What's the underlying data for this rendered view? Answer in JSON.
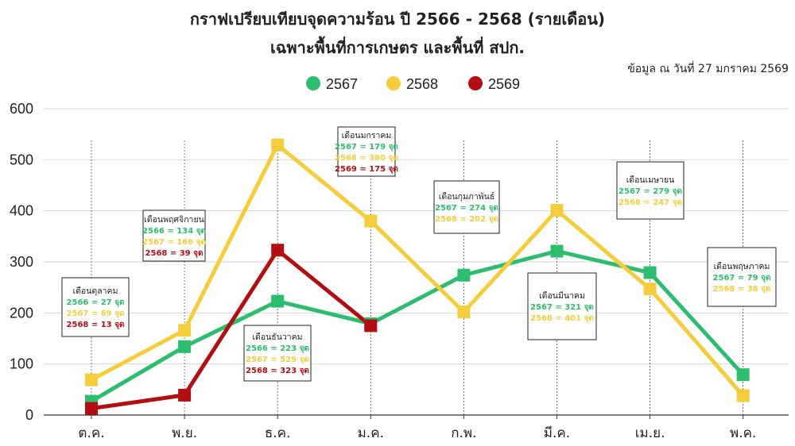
{
  "chart_data": {
    "type": "line",
    "title": "กราฟเปรียบเทียบจุดความร้อน ปี 2566 - 2568 (รายเดือน)",
    "subtitle": "เฉพาะพื้นที่การเกษตร และพื้นที่ สปก.",
    "note": "ข้อมูล ณ วันที่ 27 มกราคม 2569",
    "categories": [
      "ต.ค.",
      "พ.ย.",
      "ธ.ค.",
      "ม.ค.",
      "ก.พ.",
      "มี.ค.",
      "เม.ย.",
      "พ.ค."
    ],
    "ylim": [
      0,
      600
    ],
    "yticks": [
      0,
      100,
      200,
      300,
      400,
      500,
      600
    ],
    "grid": true,
    "legend_position": "top",
    "series": [
      {
        "name": "2567",
        "color": "#2dbd6e",
        "values": [
          27,
          134,
          223,
          179,
          274,
          321,
          279,
          79
        ]
      },
      {
        "name": "2568",
        "color": "#f5cd3c",
        "values": [
          69,
          166,
          529,
          380,
          202,
          401,
          247,
          38
        ]
      },
      {
        "name": "2569",
        "color": "#b30f12",
        "values": [
          13,
          39,
          323,
          175,
          null,
          null,
          null,
          null
        ]
      }
    ],
    "annotations": [
      {
        "title": "เดือนตุลาคม",
        "lines": [
          {
            "text": "2566 = 27 จุด",
            "color": "#2dbd6e"
          },
          {
            "text": "2567 = 69 จุด",
            "color": "#f5cd3c"
          },
          {
            "text": "2568 = 13 จุด",
            "color": "#b30f12"
          }
        ]
      },
      {
        "title": "เดือนพฤศจิกายน",
        "lines": [
          {
            "text": "2566 = 134 จุด",
            "color": "#2dbd6e"
          },
          {
            "text": "2567 = 166 จุด",
            "color": "#f5cd3c"
          },
          {
            "text": "2568 = 39 จุด",
            "color": "#b30f12"
          }
        ]
      },
      {
        "title": "เดือนธันวาคม",
        "lines": [
          {
            "text": "2566 = 223 จุด",
            "color": "#2dbd6e"
          },
          {
            "text": "2567 = 529 จุด",
            "color": "#f5cd3c"
          },
          {
            "text": "2568 = 323 จุด",
            "color": "#b30f12"
          }
        ]
      },
      {
        "title": "เดือนมกราคม",
        "lines": [
          {
            "text": "2567 = 179 จุด",
            "color": "#2dbd6e"
          },
          {
            "text": "2568 = 380 จุด",
            "color": "#f5cd3c"
          },
          {
            "text": "2569 = 175 จุด",
            "color": "#b30f12"
          }
        ]
      },
      {
        "title": "เดือนกุมภาพันธ์",
        "lines": [
          {
            "text": "2567 = 274 จุด",
            "color": "#2dbd6e"
          },
          {
            "text": "2568 = 202 จุด",
            "color": "#f5cd3c"
          }
        ]
      },
      {
        "title": "เดือนมีนาคม",
        "lines": [
          {
            "text": "2567 = 321 จุด",
            "color": "#2dbd6e"
          },
          {
            "text": "2568 = 401 จุด",
            "color": "#f5cd3c"
          }
        ]
      },
      {
        "title": "เดือนเมษายน",
        "lines": [
          {
            "text": "2567 = 279 จุด",
            "color": "#2dbd6e"
          },
          {
            "text": "2568 = 247 จุด",
            "color": "#f5cd3c"
          }
        ]
      },
      {
        "title": "เดือนพฤษภาคม",
        "lines": [
          {
            "text": "2567 = 79 จุด",
            "color": "#2dbd6e"
          },
          {
            "text": "2568 = 38 จุด",
            "color": "#f5cd3c"
          }
        ]
      }
    ]
  }
}
